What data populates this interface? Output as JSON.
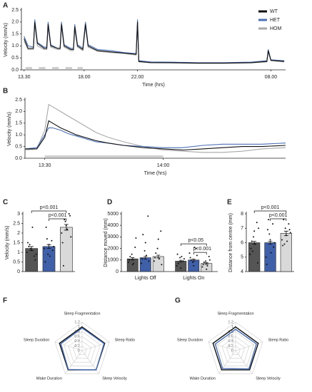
{
  "chart_data": [
    {
      "type": "line",
      "panel": "A",
      "y_label": "Velocity (mm/s)",
      "x_label": "Time (hrs)",
      "xlim": [
        -0.2,
        19.6
      ],
      "ylim": [
        0,
        2.5
      ],
      "xticks": [
        {
          "value": 0,
          "label": "13.30"
        },
        {
          "value": 4.5,
          "label": "18.00"
        },
        {
          "value": 8.5,
          "label": "22.00"
        },
        {
          "value": 18.5,
          "label": "08.00"
        }
      ],
      "yticks": [
        {
          "value": 0,
          "label": "0.0"
        },
        0.5,
        {
          "value": 1,
          "label": "1.0"
        },
        1.5,
        {
          "value": 2,
          "label": "2.0"
        },
        2.5
      ],
      "light_periods": [
        [
          0.1,
          0.6
        ],
        [
          1.1,
          1.6
        ],
        [
          2.1,
          2.6
        ],
        [
          3.1,
          3.6
        ],
        [
          4.0,
          4.4
        ]
      ],
      "legend": "top-right",
      "x": [
        0,
        0.3,
        0.7,
        0.8,
        1.0,
        1.5,
        1.7,
        1.8,
        2.0,
        2.5,
        2.7,
        2.8,
        3.0,
        3.5,
        3.7,
        3.8,
        4.0,
        4.4,
        4.6,
        4.8,
        5.5,
        6.5,
        7.5,
        8.4,
        8.5,
        8.6,
        9.5,
        11,
        13,
        15,
        17,
        18.2,
        18.3,
        18.5,
        19.5
      ],
      "series": [
        {
          "name": "WT",
          "color": "#111111",
          "values": [
            1.3,
            0.9,
            0.9,
            2.0,
            1.1,
            0.9,
            0.9,
            1.9,
            1.0,
            0.9,
            0.9,
            1.9,
            1.0,
            0.85,
            0.85,
            1.8,
            1.0,
            0.85,
            1.9,
            1.0,
            0.8,
            0.75,
            0.7,
            0.65,
            2.0,
            0.35,
            0.3,
            0.3,
            0.28,
            0.28,
            0.3,
            0.35,
            0.8,
            0.4,
            0.35
          ]
        },
        {
          "name": "HET",
          "color": "#4a6fb5",
          "values": [
            1.4,
            1.0,
            0.95,
            2.1,
            1.15,
            0.95,
            0.95,
            2.0,
            1.05,
            0.9,
            0.9,
            2.0,
            1.05,
            0.9,
            0.9,
            1.9,
            1.05,
            0.9,
            2.0,
            1.05,
            0.85,
            0.8,
            0.72,
            0.68,
            2.1,
            0.38,
            0.33,
            0.32,
            0.3,
            0.3,
            0.32,
            0.38,
            0.85,
            0.42,
            0.38
          ]
        },
        {
          "name": "HOM",
          "color": "#a9a9a9",
          "values": [
            1.2,
            0.85,
            0.85,
            1.9,
            1.0,
            0.85,
            0.85,
            1.8,
            0.95,
            0.85,
            0.85,
            1.8,
            0.95,
            0.8,
            0.8,
            1.7,
            0.95,
            0.8,
            1.8,
            0.95,
            0.78,
            0.72,
            0.68,
            0.62,
            1.9,
            0.33,
            0.3,
            0.29,
            0.27,
            0.27,
            0.29,
            0.33,
            0.75,
            0.38,
            0.33
          ]
        }
      ]
    },
    {
      "type": "line",
      "panel": "B",
      "y_label": "Velocity (mm/s)",
      "x_label": "Time (hrs)",
      "xlim": [
        25,
        91
      ],
      "ylim": [
        0,
        2.5
      ],
      "xticks": [
        {
          "value": 30,
          "label": "13:30"
        },
        {
          "value": 60,
          "label": "14:00"
        }
      ],
      "yticks": [
        {
          "value": 0,
          "label": "0.0"
        },
        0.5,
        {
          "value": 1,
          "label": "1.0"
        },
        1.5,
        {
          "value": 2,
          "label": "2.0"
        },
        2.5
      ],
      "light_periods": [
        [
          30,
          60
        ]
      ],
      "x": [
        25,
        28,
        30,
        31,
        32,
        34,
        36,
        38,
        40,
        43,
        46,
        50,
        55,
        60,
        65,
        70,
        75,
        80,
        85,
        91
      ],
      "series": [
        {
          "color": "#111111",
          "values": [
            0.4,
            0.4,
            0.9,
            1.6,
            1.5,
            1.3,
            1.15,
            1.0,
            0.9,
            0.75,
            0.65,
            0.55,
            0.45,
            0.4,
            0.35,
            0.4,
            0.45,
            0.5,
            0.5,
            0.55
          ]
        },
        {
          "color": "#4a6fb5",
          "values": [
            0.4,
            0.45,
            1.0,
            1.3,
            1.3,
            1.2,
            1.05,
            0.95,
            0.85,
            0.7,
            0.65,
            0.55,
            0.5,
            0.45,
            0.45,
            0.55,
            0.6,
            0.6,
            0.6,
            0.65
          ]
        },
        {
          "color": "#a9a9a9",
          "values": [
            0.35,
            0.4,
            1.2,
            2.3,
            2.2,
            2.0,
            1.8,
            1.6,
            1.4,
            1.1,
            0.9,
            0.7,
            0.5,
            0.35,
            0.3,
            0.25,
            0.25,
            0.3,
            0.4,
            0.45
          ]
        }
      ]
    },
    {
      "type": "bar",
      "panel": "C",
      "y_label": "Velocity (mm/s)",
      "ylim": [
        0,
        3
      ],
      "yticks": [
        0,
        0.5,
        1,
        1.5,
        2,
        2.5,
        3
      ],
      "categories": [
        null,
        null,
        null
      ],
      "colors": [
        "#555555",
        "#3f5fa8",
        "#d9d9d9"
      ],
      "values": [
        1.2,
        1.3,
        2.3
      ],
      "errors": [
        0.1,
        0.1,
        0.15
      ],
      "points": [
        [
          1.0,
          1.2,
          0.8,
          1.5,
          1.1,
          0.6,
          1.3,
          2.3,
          0.9,
          1.4
        ],
        [
          1.2,
          0.9,
          1.6,
          0.5,
          1.4,
          1.1,
          2.3,
          0.8,
          1.3,
          1.7
        ],
        [
          2.0,
          2.6,
          3.0,
          1.5,
          2.4,
          2.9,
          0.3,
          2.2,
          1.8,
          2.7
        ]
      ],
      "annotations": [
        "p<0.001",
        "p<0.001"
      ]
    },
    {
      "type": "grouped-bar",
      "panel": "D",
      "y_label": "Distance moved (mm)",
      "ylim": [
        0,
        5000
      ],
      "yticks": [
        0,
        1000,
        2000,
        3000,
        4000,
        5000
      ],
      "categories": [
        "Lights Off",
        "Lights On"
      ],
      "series": [
        {
          "color": "#555555",
          "values": [
            1100,
            900
          ],
          "errors": [
            100,
            80
          ],
          "points": [
            [
              800,
              1500,
              2100,
              1000,
              600,
              2900,
              1300,
              700
            ],
            [
              500,
              1200,
              900,
              1500,
              300,
              1100,
              700,
              1300
            ]
          ]
        },
        {
          "color": "#3f5fa8",
          "values": [
            1200,
            1000
          ],
          "errors": [
            110,
            90
          ],
          "points": [
            [
              700,
              1800,
              4800,
              1100,
              2500,
              900,
              3200,
              1400
            ],
            [
              1600,
              800,
              2000,
              1200,
              500,
              1400,
              1000,
              2100
            ]
          ]
        },
        {
          "color": "#d9d9d9",
          "values": [
            1300,
            700
          ],
          "errors": [
            120,
            70
          ],
          "points": [
            [
              900,
              2000,
              3500,
              1200,
              2800,
              600,
              1600,
              1100
            ],
            [
              400,
              900,
              1300,
              600,
              200,
              1000,
              800,
              500
            ]
          ]
        }
      ],
      "annotations": [
        "p<0.05",
        "p<0.001"
      ]
    },
    {
      "type": "bar",
      "panel": "E",
      "y_label": "Distance from centre (mm)",
      "ylim": [
        4,
        8
      ],
      "yticks": [
        4,
        5,
        6,
        7,
        8
      ],
      "categories": [
        null,
        null,
        null
      ],
      "colors": [
        "#555555",
        "#3f5fa8",
        "#d9d9d9"
      ],
      "values": [
        6.0,
        6.0,
        6.65
      ],
      "errors": [
        0.1,
        0.1,
        0.15
      ],
      "points": [
        [
          5.2,
          6.4,
          7.4,
          5.6,
          6.8,
          4.6,
          6.1,
          5.9,
          7.0,
          5.4
        ],
        [
          5.0,
          6.6,
          7.3,
          4.5,
          6.2,
          5.7,
          6.9,
          5.3,
          6.0,
          7.6
        ],
        [
          6.2,
          7.0,
          7.3,
          5.8,
          6.5,
          6.9,
          7.6,
          6.1,
          6.7,
          5.9
        ]
      ],
      "annotations": [
        "p<0.001",
        "p<0.001"
      ]
    },
    {
      "type": "radar",
      "panel": "F",
      "axes": [
        "Sleep Fragmentation",
        "Sleep Ratio",
        "Sleep Velocity",
        "Wake Duration",
        "Sleep  Duration"
      ],
      "rlim": [
        0,
        1.2
      ],
      "rticks": [
        1.2,
        1,
        0.8,
        0.6,
        0.4,
        0.2,
        0
      ],
      "series": [
        {
          "color": "#111111",
          "values": [
            1,
            1,
            1,
            1,
            1
          ]
        },
        {
          "color": "#4a6fb5",
          "values": [
            0.95,
            0.97,
            1.0,
            0.98,
            0.94
          ]
        }
      ]
    },
    {
      "type": "radar",
      "panel": "G",
      "axes": [
        "Sleep Fragmentation",
        "Sleep Ratio",
        "Sleep Velocity",
        "Wake Duration",
        "Sleep Duration"
      ],
      "rlim": [
        0,
        1.2
      ],
      "rticks": [
        1.2,
        1,
        0.8,
        0.6,
        0.4,
        0.2,
        0
      ],
      "series": [
        {
          "color": "#111111",
          "values": [
            1,
            1,
            1,
            1,
            1
          ]
        },
        {
          "color": "#4a6fb5",
          "values": [
            0.9,
            0.92,
            0.95,
            0.93,
            0.9
          ]
        }
      ]
    }
  ]
}
